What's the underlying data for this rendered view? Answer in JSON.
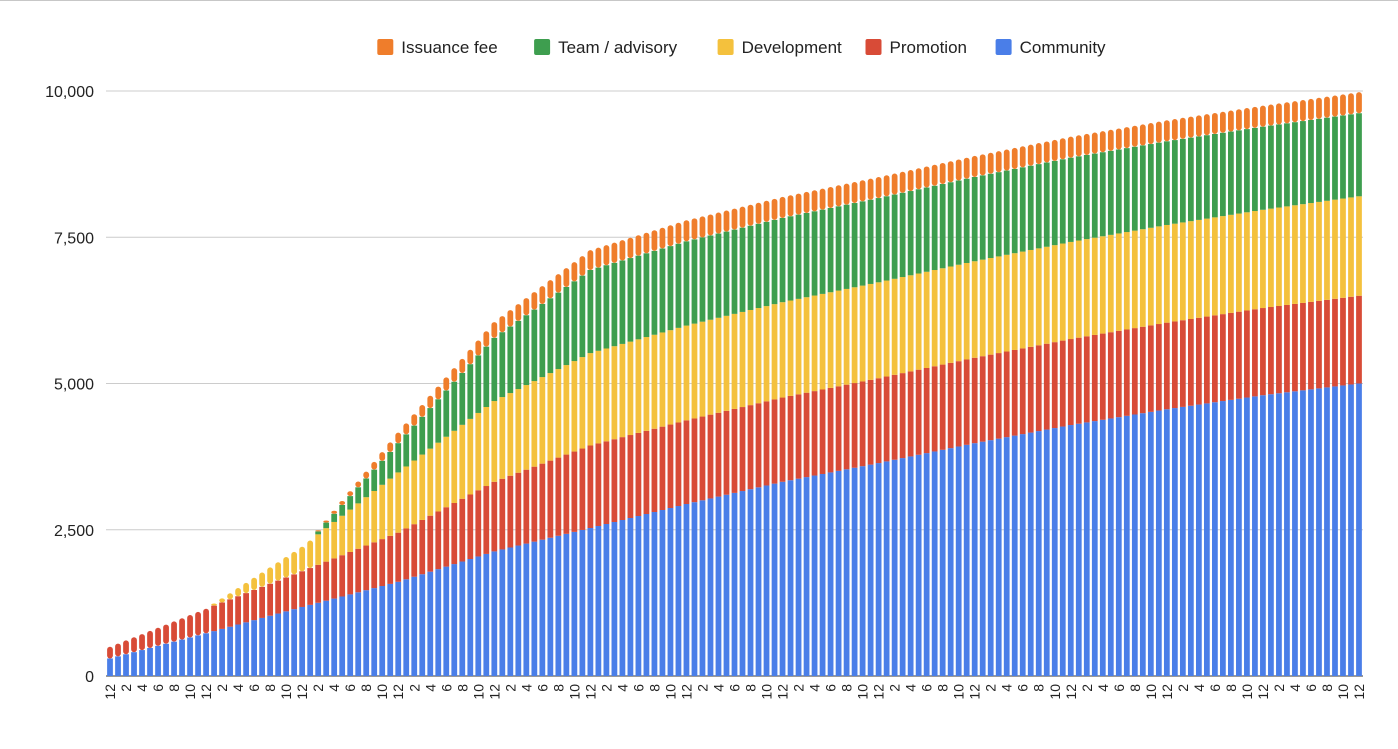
{
  "chart_data": {
    "type": "bar",
    "stacked": true,
    "legend_position": "top",
    "grid": true,
    "ylim": [
      0,
      10000
    ],
    "yticks": [
      0,
      2500,
      5000,
      7500,
      10000
    ],
    "ytick_labels": [
      "0",
      "2,500",
      "5,000",
      "7,500",
      "10,000"
    ],
    "categories": [
      "12",
      "1",
      "2",
      "3",
      "4",
      "5",
      "6",
      "7",
      "8",
      "9",
      "10",
      "11",
      "12",
      "1",
      "2",
      "3",
      "4",
      "5",
      "6",
      "7",
      "8",
      "9",
      "10",
      "11",
      "12",
      "1",
      "2",
      "3",
      "4",
      "5",
      "6",
      "7",
      "8",
      "9",
      "10",
      "11",
      "12",
      "1",
      "2",
      "3",
      "4",
      "5",
      "6",
      "7",
      "8",
      "9",
      "10",
      "11",
      "12",
      "1",
      "2",
      "3",
      "4",
      "5",
      "6",
      "7",
      "8",
      "9",
      "10",
      "11",
      "12",
      "1",
      "2",
      "3",
      "4",
      "5",
      "6",
      "7",
      "8",
      "9",
      "10",
      "11",
      "12",
      "1",
      "2",
      "3",
      "4",
      "5",
      "6",
      "7",
      "8",
      "9",
      "10",
      "11",
      "12",
      "1",
      "2",
      "3",
      "4",
      "5",
      "6",
      "7",
      "8",
      "9",
      "10",
      "11",
      "12",
      "1",
      "2",
      "3",
      "4",
      "5",
      "6",
      "7",
      "8",
      "9",
      "10",
      "11",
      "12",
      "1",
      "2",
      "3",
      "4",
      "5",
      "6",
      "7",
      "8",
      "9",
      "10",
      "11",
      "12",
      "1",
      "2",
      "3",
      "4",
      "5",
      "6",
      "7",
      "8",
      "9",
      "10",
      "11",
      "12",
      "1",
      "2",
      "3",
      "4",
      "5",
      "6",
      "7",
      "8",
      "9",
      "10",
      "11",
      "12",
      "1",
      "2",
      "3",
      "4",
      "5",
      "6",
      "7",
      "8",
      "9",
      "10",
      "11",
      "12"
    ],
    "visible_tick_labels": "every second category label is printed",
    "series_keypoints": [
      {
        "name": "Community",
        "color": "#4a7ee8",
        "keypoints": [
          [
            0,
            300
          ],
          [
            12,
            730
          ],
          [
            24,
            1180
          ],
          [
            36,
            1610
          ],
          [
            48,
            2130
          ],
          [
            60,
            2530
          ],
          [
            72,
            2940
          ],
          [
            84,
            3320
          ],
          [
            96,
            3640
          ],
          [
            108,
            3980
          ],
          [
            120,
            4290
          ],
          [
            132,
            4560
          ],
          [
            144,
            4800
          ],
          [
            156,
            5000
          ]
        ]
      },
      {
        "name": "Promotion",
        "color": "#d84b37",
        "keypoints": [
          [
            0,
            200
          ],
          [
            12,
            420
          ],
          [
            24,
            610
          ],
          [
            36,
            840
          ],
          [
            48,
            1190
          ],
          [
            60,
            1410
          ],
          [
            72,
            1430
          ],
          [
            84,
            1440
          ],
          [
            96,
            1450
          ],
          [
            108,
            1460
          ],
          [
            120,
            1470
          ],
          [
            132,
            1480
          ],
          [
            144,
            1490
          ],
          [
            156,
            1500
          ]
        ]
      },
      {
        "name": "Development",
        "color": "#f4c13d",
        "keypoints": [
          [
            0,
            0
          ],
          [
            12,
            0
          ],
          [
            24,
            420
          ],
          [
            36,
            1030
          ],
          [
            48,
            1380
          ],
          [
            60,
            1580
          ],
          [
            72,
            1620
          ],
          [
            84,
            1630
          ],
          [
            96,
            1640
          ],
          [
            108,
            1650
          ],
          [
            120,
            1660
          ],
          [
            132,
            1670
          ],
          [
            144,
            1680
          ],
          [
            156,
            1700
          ]
        ]
      },
      {
        "name": "Team / advisory",
        "color": "#3e9e4f",
        "keypoints": [
          [
            0,
            0
          ],
          [
            12,
            0
          ],
          [
            25,
            0
          ],
          [
            26,
            50
          ],
          [
            36,
            500
          ],
          [
            48,
            1080
          ],
          [
            60,
            1420
          ],
          [
            72,
            1440
          ],
          [
            84,
            1440
          ],
          [
            96,
            1440
          ],
          [
            108,
            1440
          ],
          [
            120,
            1440
          ],
          [
            132,
            1430
          ],
          [
            144,
            1420
          ],
          [
            156,
            1420
          ]
        ]
      },
      {
        "name": "Issuance fee",
        "color": "#ef7d2b",
        "keypoints": [
          [
            0,
            0
          ],
          [
            12,
            0
          ],
          [
            25,
            0
          ],
          [
            26,
            20
          ],
          [
            36,
            180
          ],
          [
            48,
            270
          ],
          [
            60,
            340
          ],
          [
            72,
            360
          ],
          [
            84,
            360
          ],
          [
            96,
            360
          ],
          [
            108,
            360
          ],
          [
            120,
            360
          ],
          [
            132,
            360
          ],
          [
            144,
            360
          ],
          [
            156,
            360
          ]
        ]
      }
    ],
    "legend_order": [
      "Issuance fee",
      "Team / advisory",
      "Development",
      "Promotion",
      "Community"
    ]
  }
}
